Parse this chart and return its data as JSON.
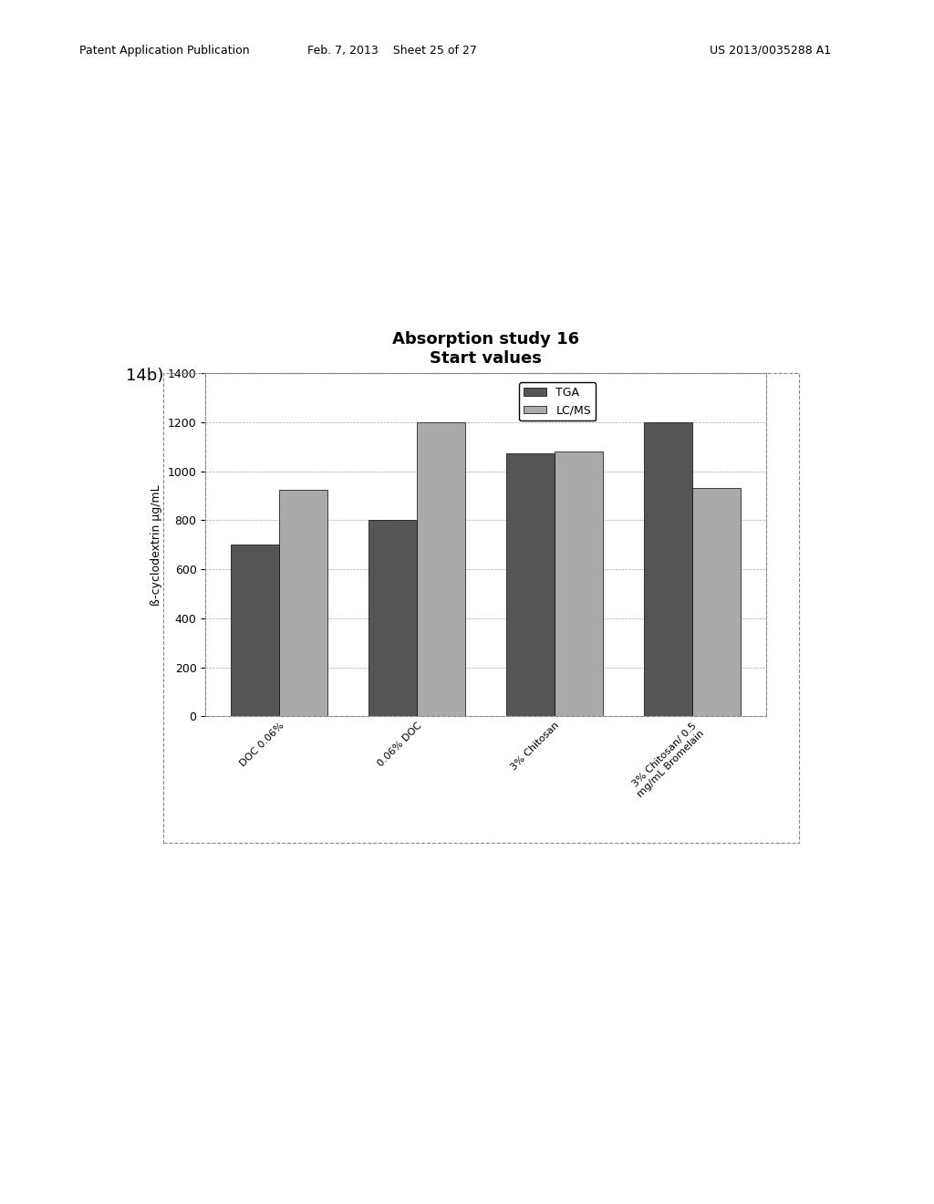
{
  "title_line1": "Absorption study 16",
  "title_line2": "Start values",
  "ylabel": "ß-cyclodextrin µg/mL",
  "categories": [
    "DOC 0.06%",
    "0.06% DOC",
    "3% Chitosan",
    "3% Chitosan/ 0.5\nmg/mL Bromelain"
  ],
  "tga_values": [
    700,
    800,
    1075,
    1200
  ],
  "lcms_values": [
    925,
    1200,
    1080,
    930
  ],
  "tga_color": "#555555",
  "lcms_color": "#aaaaaa",
  "ylim": [
    0,
    1400
  ],
  "yticks": [
    0,
    200,
    400,
    600,
    800,
    1000,
    1200,
    1400
  ],
  "legend_tga": "TGA",
  "legend_lcms": "LC/MS",
  "label_14b": "14b)",
  "bar_width": 0.35,
  "background_color": "#ffffff",
  "plot_bg_color": "#ffffff",
  "grid_color": "#aaaaaa",
  "title_fontsize": 13,
  "axis_fontsize": 9,
  "tick_fontsize": 9,
  "header_left": "Patent Application Publication",
  "header_center": "Feb. 7, 2013    Sheet 25 of 27",
  "header_right": "US 2013/0035288 A1"
}
